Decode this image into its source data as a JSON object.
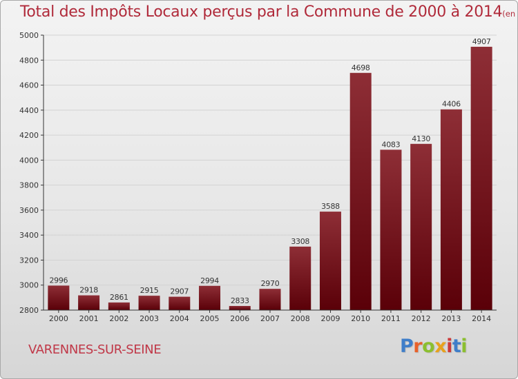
{
  "title": "Total des Impôts Locaux perçus par la Commune de 2000 à 2014",
  "unit_label": "(en milliers d'€)",
  "commune": "VARENNES-SUR-SEINE",
  "logo": {
    "letters": [
      "P",
      "r",
      "o",
      "x",
      "i",
      "t",
      "i"
    ],
    "colors": [
      "#3f7ec9",
      "#e8612a",
      "#8bbf2f",
      "#e8a21c",
      "#cc3a3a",
      "#3f7ec9",
      "#8bbf2f"
    ]
  },
  "chart_data": {
    "type": "bar",
    "categories": [
      "2000",
      "2001",
      "2002",
      "2003",
      "2004",
      "2005",
      "2006",
      "2007",
      "2008",
      "2009",
      "2010",
      "2011",
      "2012",
      "2013",
      "2014"
    ],
    "values": [
      2996,
      2918,
      2861,
      2915,
      2907,
      2994,
      2833,
      2970,
      3308,
      3588,
      4698,
      4083,
      4130,
      4406,
      4907
    ],
    "data_labels": [
      "2996",
      "2918",
      "2861",
      "2915",
      "2907",
      "2994",
      "2833",
      "2970",
      "3308",
      "3588",
      "4698",
      "4083",
      "4130",
      "4406",
      "4907"
    ],
    "ylim": [
      2800,
      5000
    ],
    "yticks": [
      "2800",
      "3000",
      "3200",
      "3400",
      "3600",
      "3800",
      "4000",
      "4200",
      "4400",
      "4600",
      "4800",
      "5000"
    ],
    "grid": true,
    "colors": {
      "bar_top": "#8e2e36",
      "bar_bottom": "#5a0008",
      "grid": "#d2d2d2",
      "axis": "#333333"
    }
  }
}
